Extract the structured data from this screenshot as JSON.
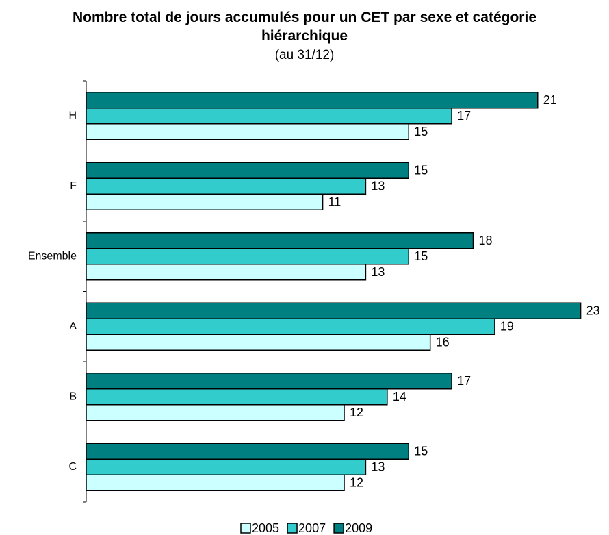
{
  "chart_data": {
    "type": "bar",
    "orientation": "horizontal",
    "title": "Nombre total de jours accumulés pour un CET par sexe et catégorie hiérarchique",
    "subtitle": "(au 31/12)",
    "categories": [
      "H",
      "F",
      "Ensemble",
      "A",
      "B",
      "C"
    ],
    "series": [
      {
        "name": "2005",
        "color": "#ccffff",
        "values": [
          15,
          11,
          13,
          16,
          12,
          12
        ]
      },
      {
        "name": "2007",
        "color": "#33cccc",
        "values": [
          17,
          13,
          15,
          19,
          14,
          13
        ]
      },
      {
        "name": "2009",
        "color": "#008080",
        "values": [
          21,
          15,
          18,
          23,
          17,
          15
        ]
      }
    ],
    "xlim": [
      0,
      24
    ],
    "legend": "bottom"
  }
}
